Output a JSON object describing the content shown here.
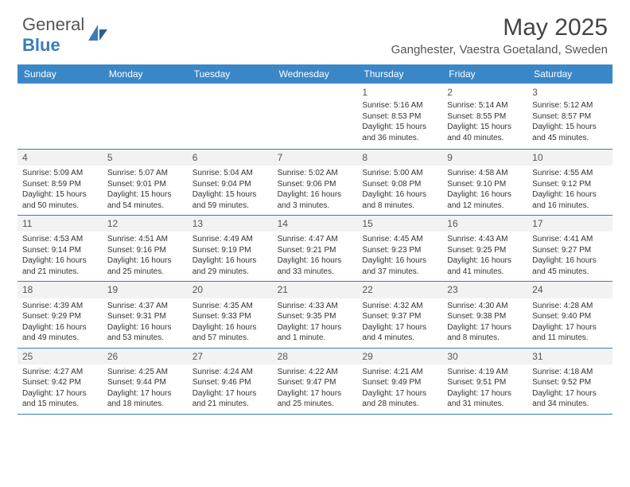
{
  "brand": {
    "part1": "General",
    "part2": "Blue"
  },
  "title": "May 2025",
  "location": "Ganghester, Vaestra Goetaland, Sweden",
  "colors": {
    "header_bg": "#3a87c8",
    "accent": "#3a7db8",
    "text": "#333333",
    "muted": "#555555",
    "row_shade": "#f2f2f2"
  },
  "day_headers": [
    "Sunday",
    "Monday",
    "Tuesday",
    "Wednesday",
    "Thursday",
    "Friday",
    "Saturday"
  ],
  "weeks": [
    [
      {
        "n": "",
        "lines": []
      },
      {
        "n": "",
        "lines": []
      },
      {
        "n": "",
        "lines": []
      },
      {
        "n": "",
        "lines": []
      },
      {
        "n": "1",
        "lines": [
          "Sunrise: 5:16 AM",
          "Sunset: 8:53 PM",
          "Daylight: 15 hours",
          "and 36 minutes."
        ]
      },
      {
        "n": "2",
        "lines": [
          "Sunrise: 5:14 AM",
          "Sunset: 8:55 PM",
          "Daylight: 15 hours",
          "and 40 minutes."
        ]
      },
      {
        "n": "3",
        "lines": [
          "Sunrise: 5:12 AM",
          "Sunset: 8:57 PM",
          "Daylight: 15 hours",
          "and 45 minutes."
        ]
      }
    ],
    [
      {
        "n": "4",
        "lines": [
          "Sunrise: 5:09 AM",
          "Sunset: 8:59 PM",
          "Daylight: 15 hours",
          "and 50 minutes."
        ]
      },
      {
        "n": "5",
        "lines": [
          "Sunrise: 5:07 AM",
          "Sunset: 9:01 PM",
          "Daylight: 15 hours",
          "and 54 minutes."
        ]
      },
      {
        "n": "6",
        "lines": [
          "Sunrise: 5:04 AM",
          "Sunset: 9:04 PM",
          "Daylight: 15 hours",
          "and 59 minutes."
        ]
      },
      {
        "n": "7",
        "lines": [
          "Sunrise: 5:02 AM",
          "Sunset: 9:06 PM",
          "Daylight: 16 hours",
          "and 3 minutes."
        ]
      },
      {
        "n": "8",
        "lines": [
          "Sunrise: 5:00 AM",
          "Sunset: 9:08 PM",
          "Daylight: 16 hours",
          "and 8 minutes."
        ]
      },
      {
        "n": "9",
        "lines": [
          "Sunrise: 4:58 AM",
          "Sunset: 9:10 PM",
          "Daylight: 16 hours",
          "and 12 minutes."
        ]
      },
      {
        "n": "10",
        "lines": [
          "Sunrise: 4:55 AM",
          "Sunset: 9:12 PM",
          "Daylight: 16 hours",
          "and 16 minutes."
        ]
      }
    ],
    [
      {
        "n": "11",
        "lines": [
          "Sunrise: 4:53 AM",
          "Sunset: 9:14 PM",
          "Daylight: 16 hours",
          "and 21 minutes."
        ]
      },
      {
        "n": "12",
        "lines": [
          "Sunrise: 4:51 AM",
          "Sunset: 9:16 PM",
          "Daylight: 16 hours",
          "and 25 minutes."
        ]
      },
      {
        "n": "13",
        "lines": [
          "Sunrise: 4:49 AM",
          "Sunset: 9:19 PM",
          "Daylight: 16 hours",
          "and 29 minutes."
        ]
      },
      {
        "n": "14",
        "lines": [
          "Sunrise: 4:47 AM",
          "Sunset: 9:21 PM",
          "Daylight: 16 hours",
          "and 33 minutes."
        ]
      },
      {
        "n": "15",
        "lines": [
          "Sunrise: 4:45 AM",
          "Sunset: 9:23 PM",
          "Daylight: 16 hours",
          "and 37 minutes."
        ]
      },
      {
        "n": "16",
        "lines": [
          "Sunrise: 4:43 AM",
          "Sunset: 9:25 PM",
          "Daylight: 16 hours",
          "and 41 minutes."
        ]
      },
      {
        "n": "17",
        "lines": [
          "Sunrise: 4:41 AM",
          "Sunset: 9:27 PM",
          "Daylight: 16 hours",
          "and 45 minutes."
        ]
      }
    ],
    [
      {
        "n": "18",
        "lines": [
          "Sunrise: 4:39 AM",
          "Sunset: 9:29 PM",
          "Daylight: 16 hours",
          "and 49 minutes."
        ]
      },
      {
        "n": "19",
        "lines": [
          "Sunrise: 4:37 AM",
          "Sunset: 9:31 PM",
          "Daylight: 16 hours",
          "and 53 minutes."
        ]
      },
      {
        "n": "20",
        "lines": [
          "Sunrise: 4:35 AM",
          "Sunset: 9:33 PM",
          "Daylight: 16 hours",
          "and 57 minutes."
        ]
      },
      {
        "n": "21",
        "lines": [
          "Sunrise: 4:33 AM",
          "Sunset: 9:35 PM",
          "Daylight: 17 hours",
          "and 1 minute."
        ]
      },
      {
        "n": "22",
        "lines": [
          "Sunrise: 4:32 AM",
          "Sunset: 9:37 PM",
          "Daylight: 17 hours",
          "and 4 minutes."
        ]
      },
      {
        "n": "23",
        "lines": [
          "Sunrise: 4:30 AM",
          "Sunset: 9:38 PM",
          "Daylight: 17 hours",
          "and 8 minutes."
        ]
      },
      {
        "n": "24",
        "lines": [
          "Sunrise: 4:28 AM",
          "Sunset: 9:40 PM",
          "Daylight: 17 hours",
          "and 11 minutes."
        ]
      }
    ],
    [
      {
        "n": "25",
        "lines": [
          "Sunrise: 4:27 AM",
          "Sunset: 9:42 PM",
          "Daylight: 17 hours",
          "and 15 minutes."
        ]
      },
      {
        "n": "26",
        "lines": [
          "Sunrise: 4:25 AM",
          "Sunset: 9:44 PM",
          "Daylight: 17 hours",
          "and 18 minutes."
        ]
      },
      {
        "n": "27",
        "lines": [
          "Sunrise: 4:24 AM",
          "Sunset: 9:46 PM",
          "Daylight: 17 hours",
          "and 21 minutes."
        ]
      },
      {
        "n": "28",
        "lines": [
          "Sunrise: 4:22 AM",
          "Sunset: 9:47 PM",
          "Daylight: 17 hours",
          "and 25 minutes."
        ]
      },
      {
        "n": "29",
        "lines": [
          "Sunrise: 4:21 AM",
          "Sunset: 9:49 PM",
          "Daylight: 17 hours",
          "and 28 minutes."
        ]
      },
      {
        "n": "30",
        "lines": [
          "Sunrise: 4:19 AM",
          "Sunset: 9:51 PM",
          "Daylight: 17 hours",
          "and 31 minutes."
        ]
      },
      {
        "n": "31",
        "lines": [
          "Sunrise: 4:18 AM",
          "Sunset: 9:52 PM",
          "Daylight: 17 hours",
          "and 34 minutes."
        ]
      }
    ]
  ]
}
